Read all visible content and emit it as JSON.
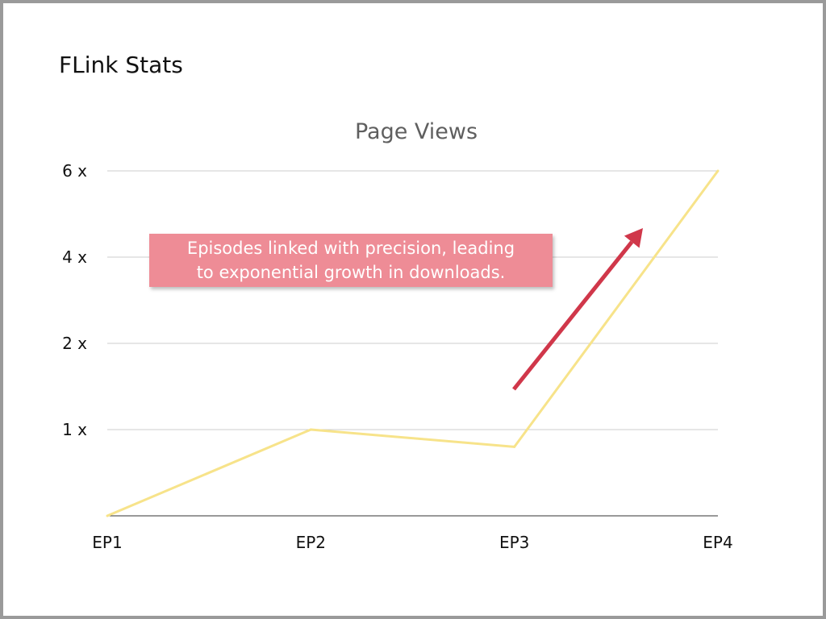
{
  "slide": {
    "title": "FLink Stats"
  },
  "chart_data": {
    "type": "line",
    "title": "Page Views",
    "xlabel": "",
    "ylabel": "",
    "categories": [
      "EP1",
      "EP2",
      "EP3",
      "EP4"
    ],
    "series": [
      {
        "values": [
          0,
          1,
          0.8,
          6
        ]
      }
    ],
    "y_ticks": [
      {
        "value": 1,
        "label": "1 x"
      },
      {
        "value": 2,
        "label": "2 x"
      },
      {
        "value": 4,
        "label": "4 x"
      },
      {
        "value": 6,
        "label": "6 x"
      }
    ],
    "y_scale": "piecewise (0, 1x, 2x, 4x, 6x equally spaced)",
    "ylim": [
      0,
      6
    ],
    "grid": true,
    "legend": "none",
    "annotation": {
      "text_line1": "Episodes linked with precision, leading",
      "text_line2": "to exponential growth in downloads."
    },
    "colors": {
      "line": "#f7e38a",
      "grid": "#cccccc",
      "annotation_bg": "#ee8c96",
      "arrow": "#d0374a"
    }
  }
}
